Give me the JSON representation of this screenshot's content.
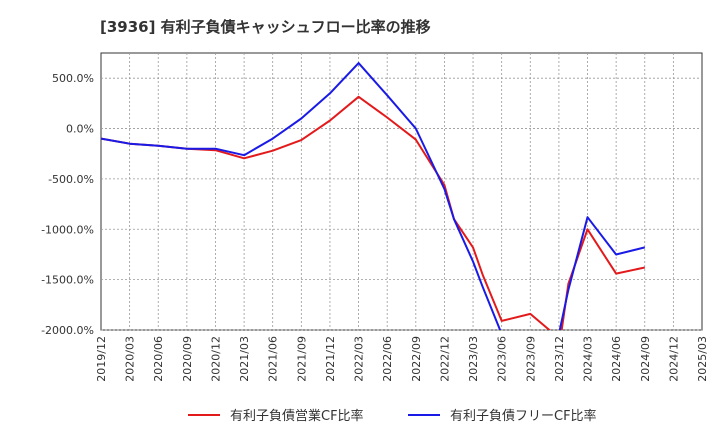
{
  "chart_data": {
    "type": "line",
    "title": "[3936]  有利子負債キャッシュフロー比率の推移",
    "xlabel": "",
    "ylabel": "",
    "x_ticks": [
      "2019/12",
      "2020/03",
      "2020/06",
      "2020/09",
      "2020/12",
      "2021/03",
      "2021/06",
      "2021/09",
      "2021/12",
      "2022/03",
      "2022/06",
      "2022/09",
      "2022/12",
      "2023/03",
      "2023/06",
      "2023/09",
      "2023/12",
      "2024/03",
      "2024/06",
      "2024/09",
      "2024/12",
      "2025/03"
    ],
    "y_ticks": [
      "500.0%",
      "0.0%",
      "-500.0%",
      "-1000.0%",
      "-1500.0%",
      "-2000.0%"
    ],
    "ylim": [
      -2000,
      750
    ],
    "y_unit": "%",
    "grid": true,
    "legend_position": "bottom",
    "series": [
      {
        "name": "有利子負債営業CF比率",
        "color": "#e31a1c",
        "points": [
          [
            "2019/12",
            -100
          ],
          [
            "2020/03",
            -150
          ],
          [
            "2020/06",
            -170
          ],
          [
            "2020/09",
            -200
          ],
          [
            "2020/12",
            -215
          ],
          [
            "2021/03",
            -295
          ],
          [
            "2021/06",
            -220
          ],
          [
            "2021/09",
            -115
          ],
          [
            "2021/12",
            80
          ],
          [
            "2022/03",
            315
          ],
          [
            "2022/06",
            110
          ],
          [
            "2022/09",
            -110
          ],
          [
            "2022/12",
            -560
          ],
          [
            "2023/01",
            -900
          ],
          [
            "2023/03",
            -1180
          ],
          [
            "2023/04",
            -1450
          ],
          [
            "2023/06",
            -1910
          ],
          [
            "2023/09",
            -1840
          ],
          [
            "2023/11",
            -2000
          ],
          [
            "2023/12",
            -2190
          ],
          [
            "2024/01",
            -1540
          ],
          [
            "2024/03",
            -1000
          ],
          [
            "2024/06",
            -1440
          ],
          [
            "2024/09",
            -1380
          ]
        ]
      },
      {
        "name": "有利子負債フリーCF比率",
        "color": "#1a1ae6",
        "points": [
          [
            "2019/12",
            -100
          ],
          [
            "2020/03",
            -150
          ],
          [
            "2020/06",
            -170
          ],
          [
            "2020/09",
            -200
          ],
          [
            "2020/12",
            -200
          ],
          [
            "2021/03",
            -265
          ],
          [
            "2021/06",
            -100
          ],
          [
            "2021/09",
            100
          ],
          [
            "2021/12",
            350
          ],
          [
            "2022/03",
            650
          ],
          [
            "2022/06",
            330
          ],
          [
            "2022/09",
            0
          ],
          [
            "2022/12",
            -600
          ],
          [
            "2023/01",
            -900
          ],
          [
            "2023/03",
            -1320
          ],
          [
            "2023/04",
            -1570
          ],
          [
            "2023/06",
            -2040
          ],
          [
            "2023/12",
            -2040
          ],
          [
            "2024/01",
            -1600
          ],
          [
            "2024/03",
            -880
          ],
          [
            "2024/06",
            -1250
          ],
          [
            "2024/09",
            -1180
          ]
        ]
      }
    ]
  }
}
